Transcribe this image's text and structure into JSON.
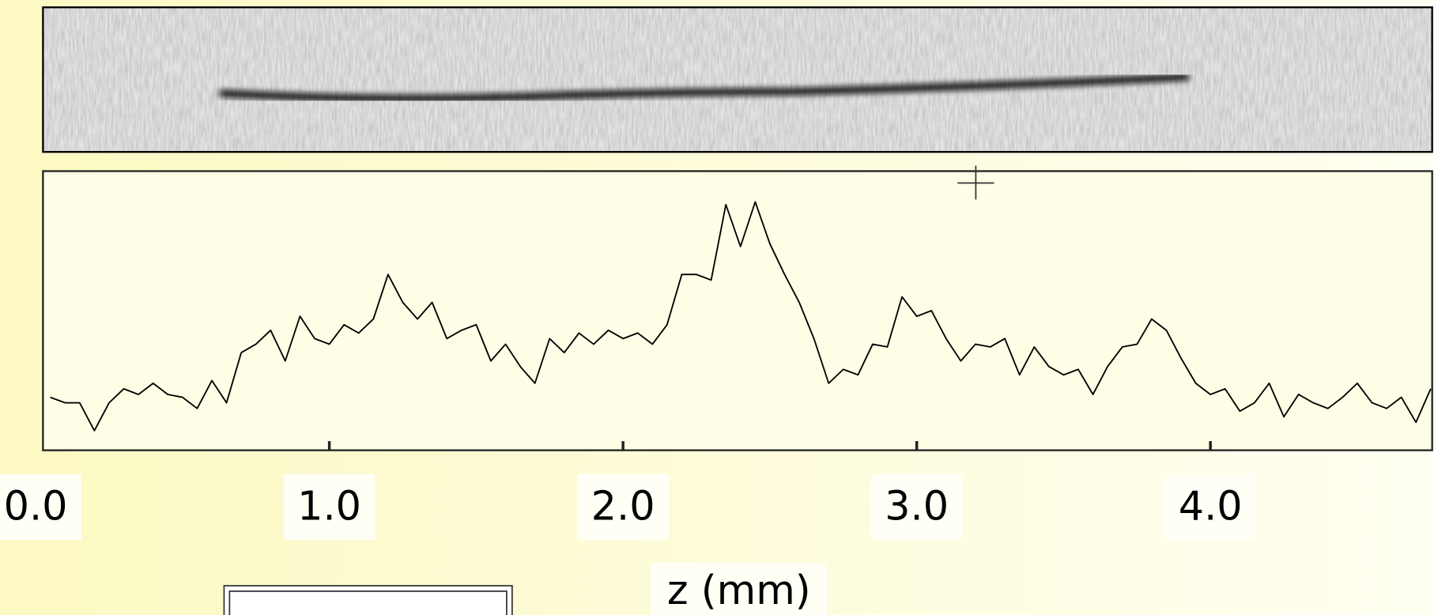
{
  "chart_data": {
    "type": "line",
    "xlabel": "z (mm)",
    "x": [
      0.05,
      0.1,
      0.15,
      0.2,
      0.25,
      0.3,
      0.35,
      0.4,
      0.45,
      0.5,
      0.55,
      0.6,
      0.65,
      0.7,
      0.75,
      0.8,
      0.85,
      0.9,
      0.95,
      1.0,
      1.05,
      1.1,
      1.15,
      1.2,
      1.25,
      1.3,
      1.35,
      1.4,
      1.45,
      1.5,
      1.55,
      1.6,
      1.65,
      1.7,
      1.75,
      1.8,
      1.85,
      1.9,
      1.95,
      2.0,
      2.05,
      2.1,
      2.15,
      2.2,
      2.25,
      2.3,
      2.35,
      2.4,
      2.45,
      2.5,
      2.55,
      2.6,
      2.65,
      2.7,
      2.75,
      2.8,
      2.85,
      2.9,
      2.95,
      3.0,
      3.05,
      3.1,
      3.15,
      3.2,
      3.25,
      3.3,
      3.35,
      3.4,
      3.45,
      3.5,
      3.55,
      3.6,
      3.65,
      3.7,
      3.75,
      3.8,
      3.85,
      3.9,
      3.95,
      4.0,
      4.05,
      4.1,
      4.15,
      4.2,
      4.25,
      4.3,
      4.35,
      4.4,
      4.45,
      4.5,
      4.55,
      4.6,
      4.65,
      4.7,
      4.75
    ],
    "values": [
      0.19,
      0.17,
      0.17,
      0.07,
      0.17,
      0.22,
      0.2,
      0.24,
      0.2,
      0.19,
      0.15,
      0.25,
      0.17,
      0.35,
      0.38,
      0.43,
      0.32,
      0.48,
      0.4,
      0.38,
      0.45,
      0.42,
      0.47,
      0.63,
      0.53,
      0.47,
      0.53,
      0.4,
      0.43,
      0.45,
      0.32,
      0.38,
      0.3,
      0.24,
      0.4,
      0.35,
      0.42,
      0.38,
      0.43,
      0.4,
      0.42,
      0.38,
      0.45,
      0.63,
      0.63,
      0.61,
      0.88,
      0.73,
      0.89,
      0.74,
      0.63,
      0.53,
      0.4,
      0.24,
      0.29,
      0.27,
      0.38,
      0.37,
      0.55,
      0.48,
      0.5,
      0.4,
      0.32,
      0.38,
      0.37,
      0.4,
      0.27,
      0.37,
      0.3,
      0.27,
      0.29,
      0.2,
      0.3,
      0.37,
      0.38,
      0.47,
      0.43,
      0.33,
      0.24,
      0.2,
      0.22,
      0.14,
      0.17,
      0.24,
      0.12,
      0.2,
      0.17,
      0.15,
      0.19,
      0.24,
      0.17,
      0.15,
      0.19,
      0.1,
      0.22
    ],
    "color": "#000000",
    "xlim": [
      0.025,
      4.755
    ],
    "xticks": [
      {
        "value": 0,
        "label": "0.0"
      },
      {
        "value": 1,
        "label": "1.0"
      },
      {
        "value": 2,
        "label": "2.0"
      },
      {
        "value": 3,
        "label": "3.0"
      },
      {
        "value": 4,
        "label": "4.0"
      }
    ],
    "ylim": [
      0,
      1
    ]
  }
}
